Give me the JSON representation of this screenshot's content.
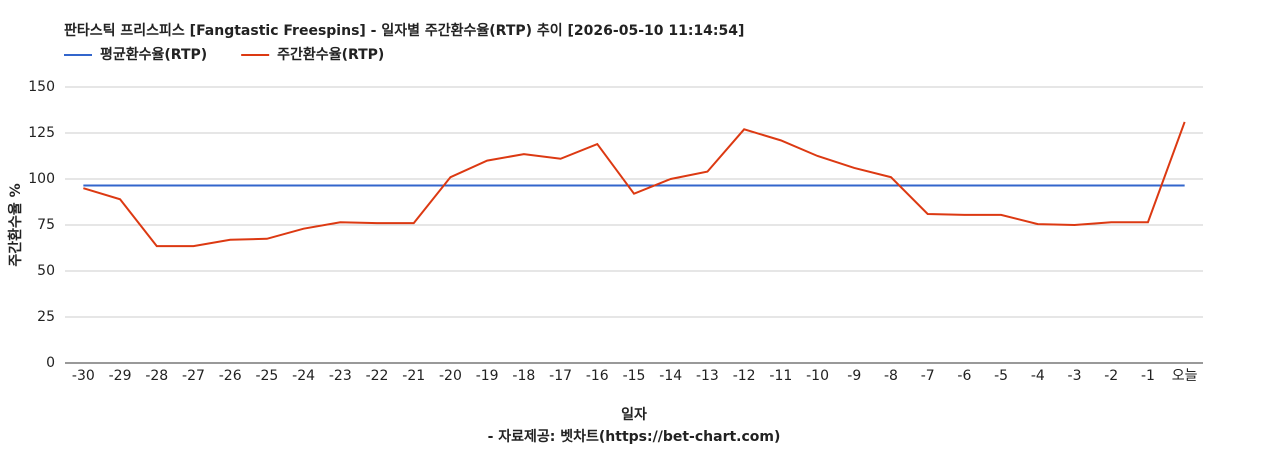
{
  "chart_data": {
    "type": "line",
    "title": "판타스틱 프리스피스 [Fangtastic Freespins] - 일자별 주간환수율(RTP) 추이 [2026-05-10 11:14:54]",
    "x_label": "일자",
    "y_label": "주간환수율 %",
    "footer": "- 자료제공: 벳차트(https://bet-chart.com)",
    "categories": [
      "-30",
      "-29",
      "-28",
      "-27",
      "-26",
      "-25",
      "-24",
      "-23",
      "-22",
      "-21",
      "-20",
      "-19",
      "-18",
      "-17",
      "-16",
      "-15",
      "-14",
      "-13",
      "-12",
      "-11",
      "-10",
      "-9",
      "-8",
      "-7",
      "-6",
      "-5",
      "-4",
      "-3",
      "-2",
      "-1",
      "오늘"
    ],
    "series": [
      {
        "name": "평균환수율(RTP)",
        "color": "#3366cc",
        "values": [
          96.5,
          96.5,
          96.5,
          96.5,
          96.5,
          96.5,
          96.5,
          96.5,
          96.5,
          96.5,
          96.5,
          96.5,
          96.5,
          96.5,
          96.5,
          96.5,
          96.5,
          96.5,
          96.5,
          96.5,
          96.5,
          96.5,
          96.5,
          96.5,
          96.5,
          96.5,
          96.5,
          96.5,
          96.5,
          96.5,
          96.5
        ]
      },
      {
        "name": "주간환수율(RTP)",
        "color": "#dc3912",
        "values": [
          95,
          89,
          63.5,
          63.5,
          67,
          67.5,
          73,
          76.5,
          76,
          76,
          101,
          110,
          113.5,
          111,
          119,
          92,
          100,
          104,
          127,
          121,
          112.5,
          106,
          101,
          81,
          80.5,
          80.5,
          75.5,
          75,
          76.5,
          76.5,
          131
        ]
      }
    ],
    "ylim": [
      0,
      150
    ],
    "yticks": [
      0,
      25,
      50,
      75,
      100,
      125,
      150
    ],
    "grid": true,
    "legend": "top"
  }
}
